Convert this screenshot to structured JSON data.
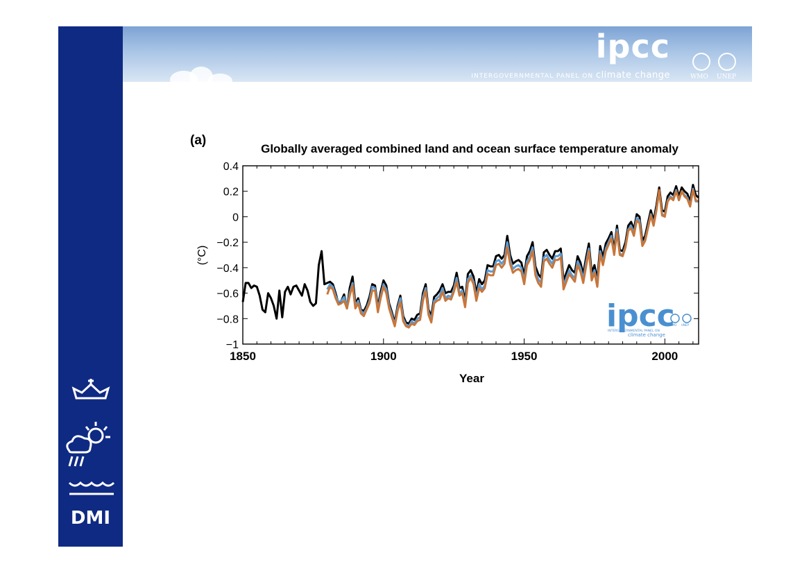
{
  "header": {
    "logo_text": "ipcc",
    "tagline_prefix": "INTERGOVERNMENTAL PANEL ON",
    "tagline_emph": "climate change",
    "partner_1": "WMO",
    "partner_2": "UNEP"
  },
  "sidebar": {
    "org_text": "DMI"
  },
  "colors": {
    "sidebar": "#0f2a83",
    "series_black": "#000000",
    "series_blue": "#5b9bd5",
    "series_orange": "#c8763a"
  },
  "chart_data": {
    "type": "line",
    "panel_label": "(a)",
    "title": "Globally averaged combined land and ocean surface temperature anomaly",
    "xlabel": "Year",
    "ylabel": "(°C)",
    "xlim": [
      1850,
      2012
    ],
    "ylim": [
      -1,
      0.4
    ],
    "x_ticks": [
      "1850",
      "1900",
      "1950",
      "2000"
    ],
    "y_ticks": [
      "0.4",
      "0.2",
      "0",
      "−0.2",
      "−0.4",
      "−0.6",
      "−0.8",
      "−1"
    ],
    "inset_logo": {
      "text": "ipcc",
      "tagline_1": "INTERGOVERNMENTAL PANEL ON",
      "tagline_2": "climate change",
      "partner_1": "WMO",
      "partner_2": "UNEP"
    },
    "series": [
      {
        "color": "#000000",
        "x": [
          1850,
          1851,
          1852,
          1853,
          1854,
          1855,
          1856,
          1857,
          1858,
          1859,
          1860,
          1861,
          1862,
          1863,
          1864,
          1865,
          1866,
          1867,
          1868,
          1869,
          1870,
          1871,
          1872,
          1873,
          1874,
          1875,
          1876,
          1877,
          1878,
          1879,
          1880,
          1881,
          1882,
          1883,
          1884,
          1885,
          1886,
          1887,
          1888,
          1889,
          1890,
          1891,
          1892,
          1893,
          1894,
          1895,
          1896,
          1897,
          1898,
          1899,
          1900,
          1901,
          1902,
          1903,
          1904,
          1905,
          1906,
          1907,
          1908,
          1909,
          1910,
          1911,
          1912,
          1913,
          1914,
          1915,
          1916,
          1917,
          1918,
          1919,
          1920,
          1921,
          1922,
          1923,
          1924,
          1925,
          1926,
          1927,
          1928,
          1929,
          1930,
          1931,
          1932,
          1933,
          1934,
          1935,
          1936,
          1937,
          1938,
          1939,
          1940,
          1941,
          1942,
          1943,
          1944,
          1945,
          1946,
          1947,
          1948,
          1949,
          1950,
          1951,
          1952,
          1953,
          1954,
          1955,
          1956,
          1957,
          1958,
          1959,
          1960,
          1961,
          1962,
          1963,
          1964,
          1965,
          1966,
          1967,
          1968,
          1969,
          1970,
          1971,
          1972,
          1973,
          1974,
          1975,
          1976,
          1977,
          1978,
          1979,
          1980,
          1981,
          1982,
          1983,
          1984,
          1985,
          1986,
          1987,
          1988,
          1989,
          1990,
          1991,
          1992,
          1993,
          1994,
          1995,
          1996,
          1997,
          1998,
          1999,
          2000,
          2001,
          2002,
          2003,
          2004,
          2005,
          2006,
          2007,
          2008,
          2009,
          2010,
          2011,
          2012
        ],
        "y": [
          -0.67,
          -0.52,
          -0.52,
          -0.56,
          -0.54,
          -0.55,
          -0.62,
          -0.73,
          -0.75,
          -0.6,
          -0.64,
          -0.7,
          -0.8,
          -0.58,
          -0.79,
          -0.59,
          -0.55,
          -0.61,
          -0.55,
          -0.54,
          -0.58,
          -0.62,
          -0.53,
          -0.58,
          -0.67,
          -0.7,
          -0.68,
          -0.38,
          -0.27,
          -0.53,
          -0.52,
          -0.51,
          -0.53,
          -0.6,
          -0.68,
          -0.66,
          -0.61,
          -0.72,
          -0.56,
          -0.47,
          -0.68,
          -0.64,
          -0.73,
          -0.74,
          -0.7,
          -0.63,
          -0.53,
          -0.54,
          -0.71,
          -0.59,
          -0.5,
          -0.54,
          -0.68,
          -0.75,
          -0.83,
          -0.7,
          -0.62,
          -0.78,
          -0.83,
          -0.84,
          -0.8,
          -0.81,
          -0.77,
          -0.76,
          -0.6,
          -0.53,
          -0.73,
          -0.78,
          -0.63,
          -0.61,
          -0.58,
          -0.53,
          -0.6,
          -0.59,
          -0.59,
          -0.54,
          -0.44,
          -0.56,
          -0.55,
          -0.66,
          -0.45,
          -0.42,
          -0.47,
          -0.6,
          -0.49,
          -0.53,
          -0.5,
          -0.38,
          -0.39,
          -0.39,
          -0.31,
          -0.3,
          -0.33,
          -0.3,
          -0.15,
          -0.3,
          -0.37,
          -0.35,
          -0.34,
          -0.36,
          -0.46,
          -0.31,
          -0.27,
          -0.2,
          -0.39,
          -0.45,
          -0.48,
          -0.28,
          -0.26,
          -0.3,
          -0.33,
          -0.27,
          -0.27,
          -0.25,
          -0.5,
          -0.44,
          -0.38,
          -0.42,
          -0.44,
          -0.31,
          -0.36,
          -0.45,
          -0.32,
          -0.21,
          -0.44,
          -0.38,
          -0.49,
          -0.23,
          -0.32,
          -0.21,
          -0.17,
          -0.12,
          -0.26,
          -0.07,
          -0.26,
          -0.27,
          -0.2,
          -0.07,
          -0.04,
          -0.1,
          0.02,
          0.0,
          -0.19,
          -0.15,
          -0.05,
          0.05,
          -0.03,
          0.09,
          0.23,
          0.05,
          0.04,
          0.16,
          0.19,
          0.17,
          0.24,
          0.16,
          0.23,
          0.2,
          0.18,
          0.12,
          0.25,
          0.17,
          0.15
        ]
      },
      {
        "color": "#5b9bd5",
        "x": [
          1880,
          1881,
          1882,
          1883,
          1884,
          1885,
          1886,
          1887,
          1888,
          1889,
          1890,
          1891,
          1892,
          1893,
          1894,
          1895,
          1896,
          1897,
          1898,
          1899,
          1900,
          1901,
          1902,
          1903,
          1904,
          1905,
          1906,
          1907,
          1908,
          1909,
          1910,
          1911,
          1912,
          1913,
          1914,
          1915,
          1916,
          1917,
          1918,
          1919,
          1920,
          1921,
          1922,
          1923,
          1924,
          1925,
          1926,
          1927,
          1928,
          1929,
          1930,
          1931,
          1932,
          1933,
          1934,
          1935,
          1936,
          1937,
          1938,
          1939,
          1940,
          1941,
          1942,
          1943,
          1944,
          1945,
          1946,
          1947,
          1948,
          1949,
          1950,
          1951,
          1952,
          1953,
          1954,
          1955,
          1956,
          1957,
          1958,
          1959,
          1960,
          1961,
          1962,
          1963,
          1964,
          1965,
          1966,
          1967,
          1968,
          1969,
          1970,
          1971,
          1972,
          1973,
          1974,
          1975,
          1976,
          1977,
          1978,
          1979,
          1980,
          1981,
          1982,
          1983,
          1984,
          1985,
          1986,
          1987,
          1988,
          1989,
          1990,
          1991,
          1992,
          1993,
          1994,
          1995,
          1996,
          1997,
          1998,
          1999,
          2000,
          2001,
          2002,
          2003,
          2004,
          2005,
          2006,
          2007,
          2008,
          2009,
          2010,
          2011,
          2012
        ],
        "y": [
          -0.57,
          -0.53,
          -0.55,
          -0.62,
          -0.67,
          -0.66,
          -0.63,
          -0.71,
          -0.6,
          -0.52,
          -0.7,
          -0.66,
          -0.74,
          -0.76,
          -0.72,
          -0.66,
          -0.55,
          -0.56,
          -0.73,
          -0.62,
          -0.53,
          -0.57,
          -0.7,
          -0.77,
          -0.85,
          -0.72,
          -0.64,
          -0.8,
          -0.85,
          -0.86,
          -0.82,
          -0.84,
          -0.8,
          -0.79,
          -0.63,
          -0.56,
          -0.75,
          -0.81,
          -0.66,
          -0.64,
          -0.62,
          -0.56,
          -0.64,
          -0.62,
          -0.63,
          -0.57,
          -0.48,
          -0.6,
          -0.58,
          -0.69,
          -0.49,
          -0.46,
          -0.51,
          -0.64,
          -0.53,
          -0.57,
          -0.54,
          -0.42,
          -0.43,
          -0.43,
          -0.35,
          -0.34,
          -0.37,
          -0.34,
          -0.2,
          -0.34,
          -0.41,
          -0.39,
          -0.38,
          -0.4,
          -0.5,
          -0.35,
          -0.31,
          -0.24,
          -0.43,
          -0.49,
          -0.52,
          -0.32,
          -0.3,
          -0.34,
          -0.37,
          -0.31,
          -0.31,
          -0.29,
          -0.54,
          -0.48,
          -0.42,
          -0.46,
          -0.48,
          -0.35,
          -0.4,
          -0.49,
          -0.36,
          -0.25,
          -0.48,
          -0.42,
          -0.53,
          -0.27,
          -0.36,
          -0.25,
          -0.2,
          -0.15,
          -0.29,
          -0.1,
          -0.29,
          -0.3,
          -0.23,
          -0.1,
          -0.07,
          -0.13,
          -0.01,
          -0.03,
          -0.22,
          -0.18,
          -0.08,
          0.02,
          -0.06,
          0.06,
          0.2,
          0.02,
          0.01,
          0.13,
          0.16,
          0.14,
          0.21,
          0.13,
          0.2,
          0.17,
          0.15,
          0.09,
          0.22,
          0.12,
          0.12
        ]
      },
      {
        "color": "#c8763a",
        "x": [
          1880,
          1881,
          1882,
          1883,
          1884,
          1885,
          1886,
          1887,
          1888,
          1889,
          1890,
          1891,
          1892,
          1893,
          1894,
          1895,
          1896,
          1897,
          1898,
          1899,
          1900,
          1901,
          1902,
          1903,
          1904,
          1905,
          1906,
          1907,
          1908,
          1909,
          1910,
          1911,
          1912,
          1913,
          1914,
          1915,
          1916,
          1917,
          1918,
          1919,
          1920,
          1921,
          1922,
          1923,
          1924,
          1925,
          1926,
          1927,
          1928,
          1929,
          1930,
          1931,
          1932,
          1933,
          1934,
          1935,
          1936,
          1937,
          1938,
          1939,
          1940,
          1941,
          1942,
          1943,
          1944,
          1945,
          1946,
          1947,
          1948,
          1949,
          1950,
          1951,
          1952,
          1953,
          1954,
          1955,
          1956,
          1957,
          1958,
          1959,
          1960,
          1961,
          1962,
          1963,
          1964,
          1965,
          1966,
          1967,
          1968,
          1969,
          1970,
          1971,
          1972,
          1973,
          1974,
          1975,
          1976,
          1977,
          1978,
          1979,
          1980,
          1981,
          1982,
          1983,
          1984,
          1985,
          1986,
          1987,
          1988,
          1989,
          1990,
          1991,
          1992,
          1993,
          1994,
          1995,
          1996,
          1997,
          1998,
          1999,
          2000,
          2001,
          2002,
          2003,
          2004,
          2005,
          2006,
          2007,
          2008,
          2009,
          2010,
          2011,
          2012
        ],
        "y": [
          -0.61,
          -0.55,
          -0.57,
          -0.64,
          -0.69,
          -0.68,
          -0.66,
          -0.72,
          -0.62,
          -0.54,
          -0.72,
          -0.68,
          -0.76,
          -0.78,
          -0.73,
          -0.68,
          -0.58,
          -0.58,
          -0.75,
          -0.64,
          -0.55,
          -0.6,
          -0.72,
          -0.79,
          -0.86,
          -0.74,
          -0.67,
          -0.82,
          -0.86,
          -0.87,
          -0.84,
          -0.85,
          -0.82,
          -0.81,
          -0.66,
          -0.58,
          -0.77,
          -0.83,
          -0.68,
          -0.66,
          -0.65,
          -0.59,
          -0.66,
          -0.64,
          -0.65,
          -0.59,
          -0.51,
          -0.62,
          -0.6,
          -0.71,
          -0.52,
          -0.48,
          -0.53,
          -0.66,
          -0.56,
          -0.59,
          -0.56,
          -0.45,
          -0.46,
          -0.46,
          -0.38,
          -0.37,
          -0.4,
          -0.37,
          -0.24,
          -0.37,
          -0.44,
          -0.42,
          -0.41,
          -0.43,
          -0.53,
          -0.38,
          -0.34,
          -0.27,
          -0.46,
          -0.52,
          -0.55,
          -0.35,
          -0.33,
          -0.37,
          -0.4,
          -0.34,
          -0.34,
          -0.32,
          -0.57,
          -0.51,
          -0.45,
          -0.48,
          -0.51,
          -0.38,
          -0.43,
          -0.52,
          -0.39,
          -0.27,
          -0.5,
          -0.44,
          -0.55,
          -0.29,
          -0.38,
          -0.27,
          -0.22,
          -0.17,
          -0.3,
          -0.12,
          -0.3,
          -0.31,
          -0.24,
          -0.11,
          -0.09,
          -0.15,
          -0.03,
          -0.05,
          -0.23,
          -0.19,
          -0.09,
          0.01,
          -0.07,
          0.05,
          0.21,
          0.01,
          0.0,
          0.12,
          0.15,
          0.13,
          0.2,
          0.13,
          0.2,
          0.16,
          0.14,
          0.08,
          0.21,
          0.13,
          0.12
        ]
      }
    ]
  }
}
